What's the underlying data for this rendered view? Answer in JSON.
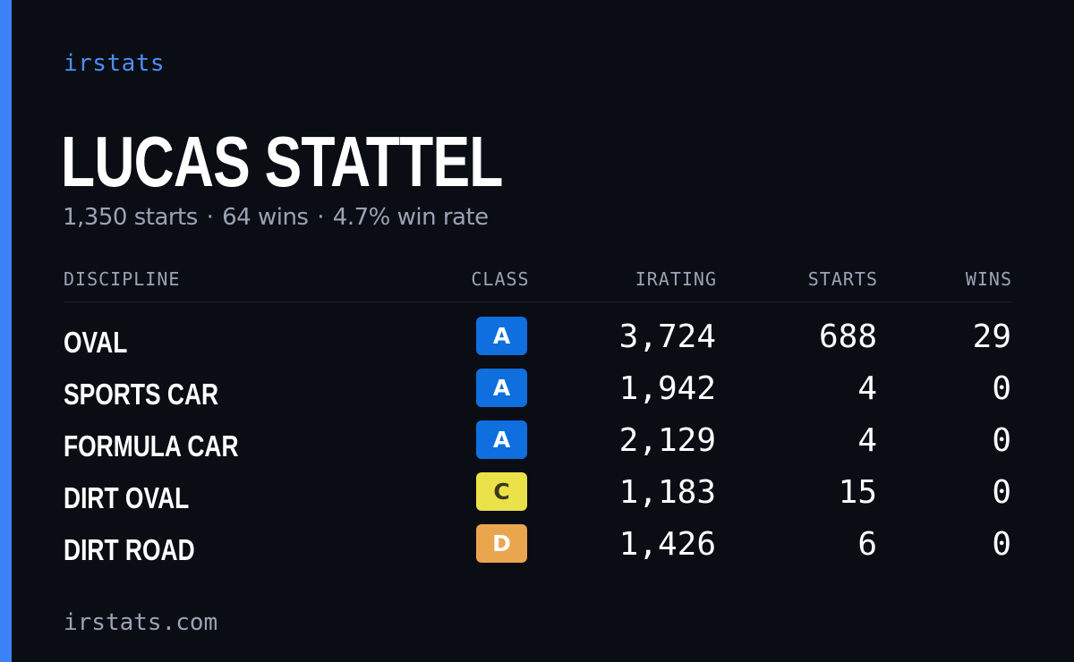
{
  "brand": "irstats",
  "driver": {
    "name": "LUCAS STATTEL",
    "starts": "1,350 starts",
    "wins": "64 wins",
    "win_rate": "4.7% win rate",
    "separator": "·"
  },
  "table": {
    "headers": {
      "discipline": "DISCIPLINE",
      "class": "CLASS",
      "irating": "IRATING",
      "starts": "STARTS",
      "wins": "WINS"
    },
    "rows": [
      {
        "discipline": "OVAL",
        "class": "A",
        "class_color": "#0f6fde",
        "class_text_color": "#ffffff",
        "irating": "3,724",
        "starts": "688",
        "wins": "29"
      },
      {
        "discipline": "SPORTS CAR",
        "class": "A",
        "class_color": "#0f6fde",
        "class_text_color": "#ffffff",
        "irating": "1,942",
        "starts": "4",
        "wins": "0"
      },
      {
        "discipline": "FORMULA CAR",
        "class": "A",
        "class_color": "#0f6fde",
        "class_text_color": "#ffffff",
        "irating": "2,129",
        "starts": "4",
        "wins": "0"
      },
      {
        "discipline": "DIRT OVAL",
        "class": "C",
        "class_color": "#ebe24a",
        "class_text_color": "#3a3a1a",
        "irating": "1,183",
        "starts": "15",
        "wins": "0"
      },
      {
        "discipline": "DIRT ROAD",
        "class": "D",
        "class_color": "#eaa64f",
        "class_text_color": "#ffffff",
        "irating": "1,426",
        "starts": "6",
        "wins": "0"
      }
    ]
  },
  "footer": "irstats.com",
  "colors": {
    "background": "#0b0d14",
    "accent": "#3b82f6",
    "muted": "#9aa3b5"
  }
}
